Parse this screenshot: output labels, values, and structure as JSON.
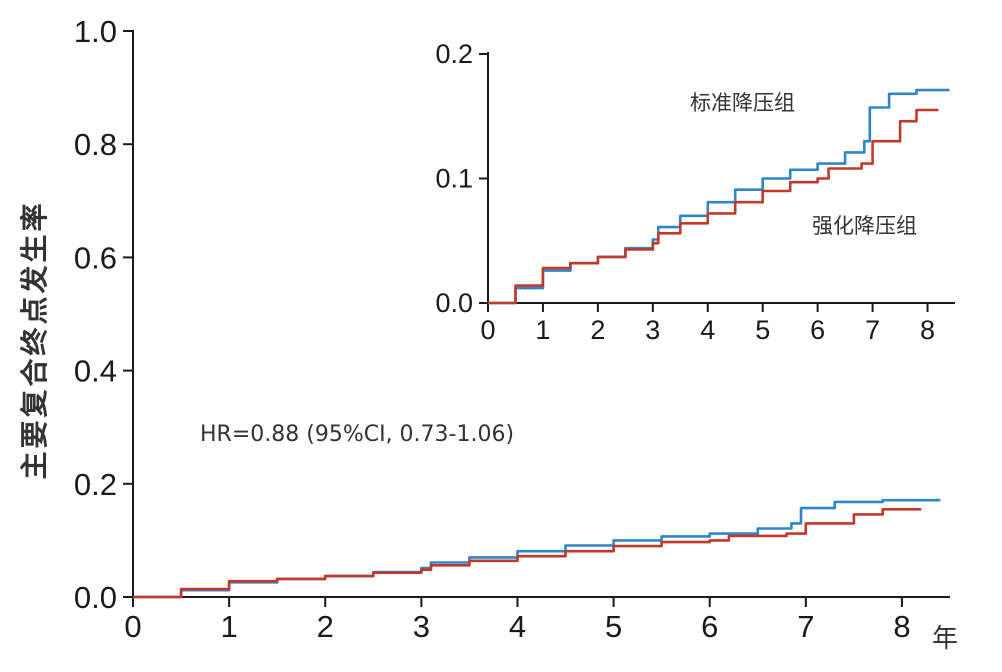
{
  "chart_data": [
    {
      "type": "line",
      "ylabel": "主要复合终点发生率",
      "xlabel": "年",
      "xlim": [
        0,
        8.5
      ],
      "ylim": [
        0,
        1.0
      ],
      "xticks": [
        "0",
        "1",
        "2",
        "3",
        "4",
        "5",
        "6",
        "7",
        "8"
      ],
      "yticks": [
        "0.0",
        "0.2",
        "0.4",
        "0.6",
        "0.8",
        "1.0"
      ],
      "annotation": "HR=0.88 (95%CI, 0.73-1.06)",
      "grid": false,
      "series": [
        {
          "name": "标准降压组",
          "color": "#2e86c9",
          "x": [
            0,
            0.5,
            1.0,
            1.5,
            2.0,
            2.5,
            3.0,
            3.1,
            3.5,
            4.0,
            4.5,
            5.0,
            5.5,
            6.0,
            6.5,
            6.85,
            6.95,
            7.3,
            7.8,
            8.4
          ],
          "y": [
            0,
            0.012,
            0.026,
            0.032,
            0.037,
            0.044,
            0.051,
            0.061,
            0.07,
            0.081,
            0.091,
            0.1,
            0.107,
            0.112,
            0.121,
            0.13,
            0.157,
            0.168,
            0.171,
            0.171
          ]
        },
        {
          "name": "强化降压组",
          "color": "#c0392b",
          "x": [
            0,
            0.5,
            1.0,
            1.5,
            2.0,
            2.5,
            3.0,
            3.1,
            3.5,
            4.0,
            4.5,
            5.0,
            5.5,
            6.0,
            6.2,
            6.8,
            7.0,
            7.5,
            7.8,
            8.2
          ],
          "y": [
            0,
            0.014,
            0.028,
            0.032,
            0.037,
            0.043,
            0.048,
            0.056,
            0.064,
            0.072,
            0.081,
            0.09,
            0.097,
            0.1,
            0.108,
            0.112,
            0.13,
            0.146,
            0.155,
            0.155
          ]
        }
      ]
    },
    {
      "type": "line",
      "inset": true,
      "xlim": [
        0,
        8.5
      ],
      "ylim": [
        0,
        0.2
      ],
      "xticks": [
        "0",
        "1",
        "2",
        "3",
        "4",
        "5",
        "6",
        "7",
        "8"
      ],
      "yticks": [
        "0.0",
        "0.1",
        "0.2"
      ],
      "labels": {
        "standard": "标准降压组",
        "intensive": "强化降压组"
      },
      "series": [
        {
          "name": "标准降压组",
          "color": "#2e86c9",
          "x": [
            0,
            0.5,
            1.0,
            1.5,
            2.0,
            2.5,
            3.0,
            3.1,
            3.5,
            4.0,
            4.5,
            5.0,
            5.5,
            6.0,
            6.5,
            6.85,
            6.95,
            7.3,
            7.8,
            8.4
          ],
          "y": [
            0,
            0.012,
            0.026,
            0.032,
            0.037,
            0.044,
            0.051,
            0.061,
            0.07,
            0.081,
            0.091,
            0.1,
            0.107,
            0.112,
            0.121,
            0.13,
            0.157,
            0.168,
            0.171,
            0.171
          ]
        },
        {
          "name": "强化降压组",
          "color": "#c0392b",
          "x": [
            0,
            0.5,
            1.0,
            1.5,
            2.0,
            2.5,
            3.0,
            3.1,
            3.5,
            4.0,
            4.5,
            5.0,
            5.5,
            6.0,
            6.2,
            6.8,
            7.0,
            7.5,
            7.8,
            8.2
          ],
          "y": [
            0,
            0.014,
            0.028,
            0.032,
            0.037,
            0.043,
            0.048,
            0.056,
            0.064,
            0.072,
            0.081,
            0.09,
            0.097,
            0.1,
            0.108,
            0.112,
            0.13,
            0.146,
            0.155,
            0.155
          ]
        }
      ]
    }
  ]
}
